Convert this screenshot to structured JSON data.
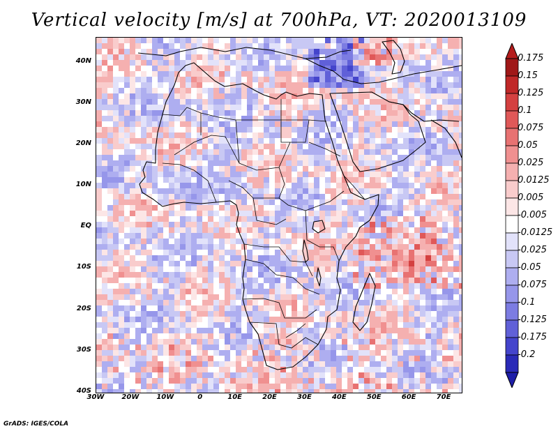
{
  "title": "Vertical velocity [m/s] at 700hPa, VT: 2020013109",
  "footer": "GrADS: IGES/COLA",
  "colors": {
    "strong_negative": "#3a20c8",
    "negative": "#9c9cf0",
    "neutral": "#ffffff",
    "positive": "#f0a0a0",
    "strong_positive": "#c82020",
    "coastline": "#000000"
  },
  "chart_data": {
    "type": "heatmap",
    "title": "Vertical velocity [m/s] at 700hPa, VT: 2020013109",
    "variable": "Vertical velocity",
    "units": "m/s",
    "level": "700hPa",
    "valid_time": "2020013109",
    "lon_range": [
      -30,
      75
    ],
    "lat_range": [
      -40,
      46
    ],
    "x_ticks": [
      {
        "value": -30,
        "label": "30W"
      },
      {
        "value": -20,
        "label": "20W"
      },
      {
        "value": -10,
        "label": "10W"
      },
      {
        "value": 0,
        "label": "0"
      },
      {
        "value": 10,
        "label": "10E"
      },
      {
        "value": 20,
        "label": "20E"
      },
      {
        "value": 30,
        "label": "30E"
      },
      {
        "value": 40,
        "label": "40E"
      },
      {
        "value": 50,
        "label": "50E"
      },
      {
        "value": 60,
        "label": "60E"
      },
      {
        "value": 70,
        "label": "70E"
      }
    ],
    "y_ticks": [
      {
        "value": 40,
        "label": "40N"
      },
      {
        "value": 30,
        "label": "30N"
      },
      {
        "value": 20,
        "label": "20N"
      },
      {
        "value": 10,
        "label": "10N"
      },
      {
        "value": 0,
        "label": "EQ"
      },
      {
        "value": -10,
        "label": "10S"
      },
      {
        "value": -20,
        "label": "20S"
      },
      {
        "value": -30,
        "label": "30S"
      },
      {
        "value": -40,
        "label": "40S"
      }
    ],
    "colorbar": {
      "levels": [
        {
          "label": "0.175",
          "value": 0.175,
          "color": "#a01818"
        },
        {
          "label": "0.15",
          "value": 0.15,
          "color": "#c02828"
        },
        {
          "label": "0.125",
          "value": 0.125,
          "color": "#d44040"
        },
        {
          "label": "0.1",
          "value": 0.1,
          "color": "#e05858"
        },
        {
          "label": "0.075",
          "value": 0.075,
          "color": "#e87272"
        },
        {
          "label": "0.05",
          "value": 0.05,
          "color": "#f09090"
        },
        {
          "label": "0.025",
          "value": 0.025,
          "color": "#f5b0b0"
        },
        {
          "label": "0.0125",
          "value": 0.0125,
          "color": "#f9cccc"
        },
        {
          "label": "0.005",
          "value": 0.005,
          "color": "#fce6e6"
        },
        {
          "label": "-0.005",
          "value": -0.005,
          "color": "#ffffff"
        },
        {
          "label": "-0.0125",
          "value": -0.0125,
          "color": "#e2e2fa"
        },
        {
          "label": "-0.025",
          "value": -0.025,
          "color": "#c8c8f4"
        },
        {
          "label": "-0.05",
          "value": -0.05,
          "color": "#aeaef0"
        },
        {
          "label": "-0.075",
          "value": -0.075,
          "color": "#9696ea"
        },
        {
          "label": "-0.1",
          "value": -0.1,
          "color": "#7c7ce2"
        },
        {
          "label": "-0.125",
          "value": -0.125,
          "color": "#6060d8"
        },
        {
          "label": "-0.175",
          "value": -0.175,
          "color": "#4444cc"
        },
        {
          "label": "-0.2",
          "value": -0.2,
          "color": "#2a2ab8"
        }
      ],
      "top_color": "#b41c1c",
      "bottom_color": "#1e1ea8"
    }
  }
}
